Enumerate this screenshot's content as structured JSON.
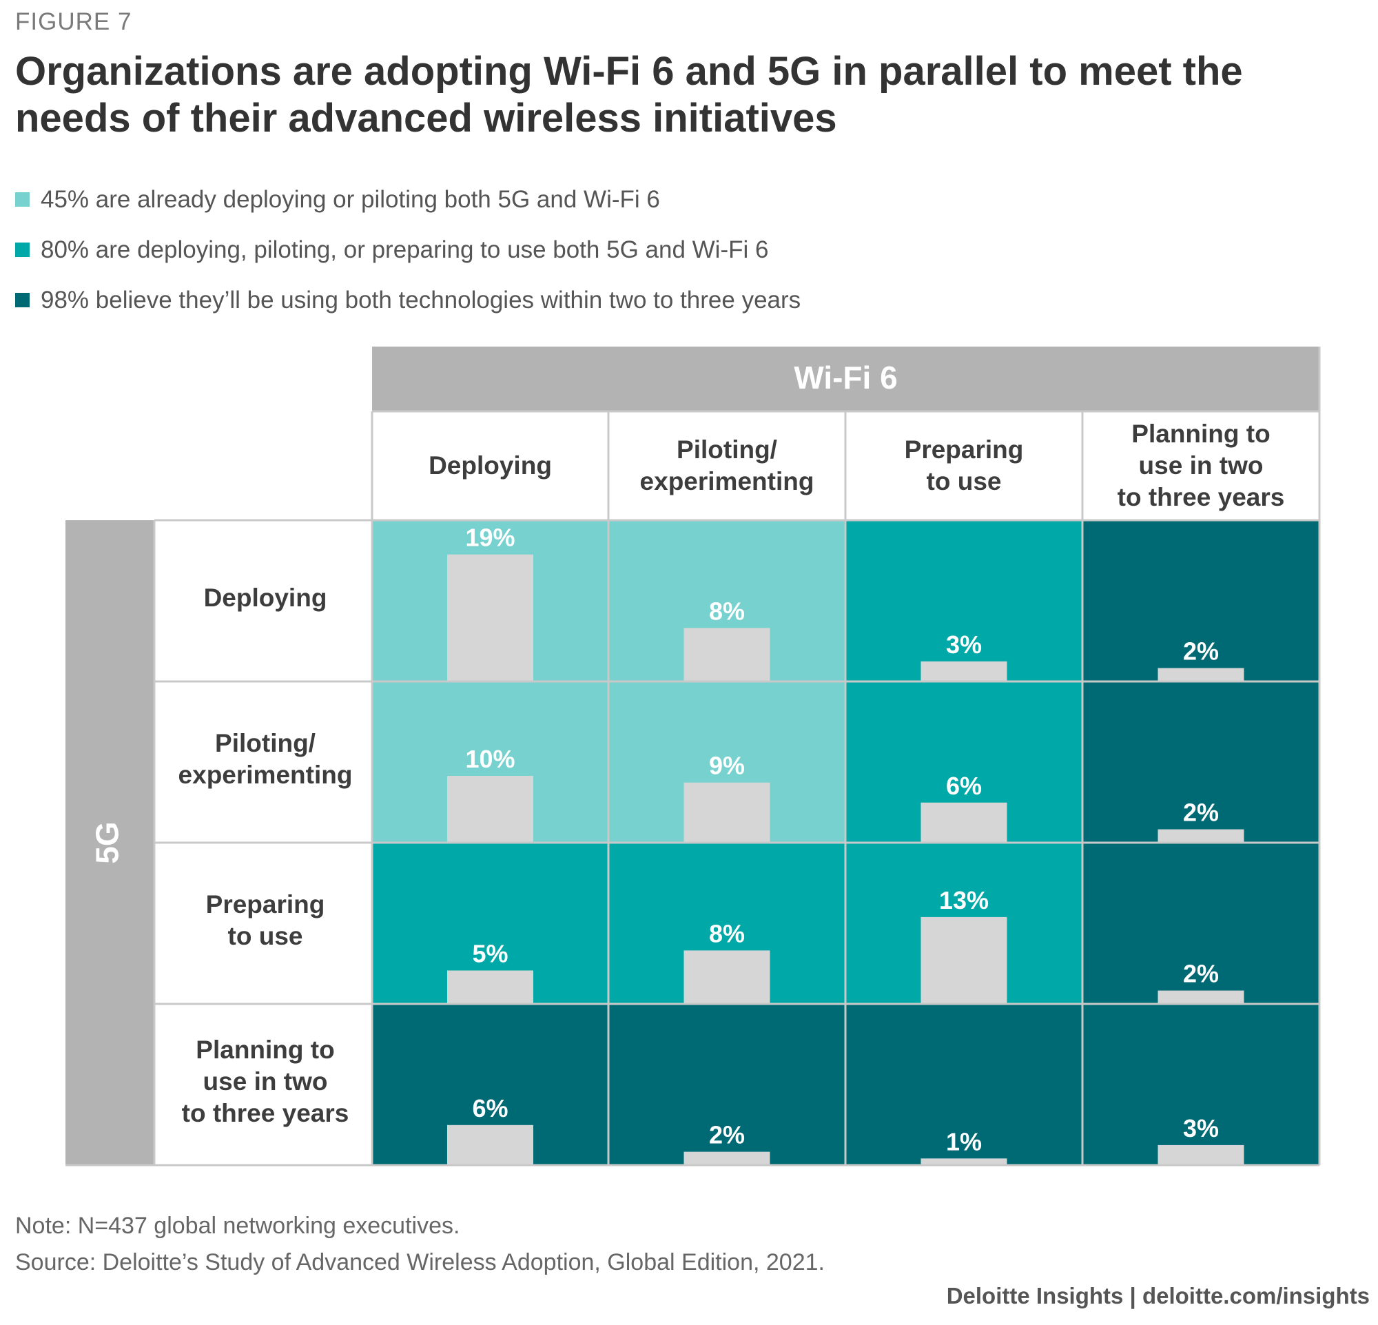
{
  "figure_label": "FIGURE 7",
  "title": "Organizations are adopting Wi-Fi 6 and 5G in parallel to meet the needs of their advanced wireless initiatives",
  "legend": [
    {
      "text": "45% are already deploying or piloting both 5G and Wi-Fi 6",
      "color": "#76d1cf"
    },
    {
      "text": "80% are deploying, piloting, or preparing to use both 5G and Wi-Fi 6",
      "color": "#00a9a7"
    },
    {
      "text": "98% believe they’ll be using both technologies within two to three years",
      "color": "#006a74"
    }
  ],
  "note": "Note: N=437 global networking executives.",
  "source": "Source: Deloitte’s Study of Advanced Wireless Adoption, Global Edition, 2021.",
  "brand": "Deloitte Insights | deloitte.com/insights",
  "colors": {
    "header_gray": "#b3b3b4",
    "bar": "#d6d6d6",
    "tier1": "#76d1cf",
    "tier2": "#00a9a7",
    "tier3": "#006a74"
  },
  "chart_data": {
    "type": "heatmap",
    "column_axis": "Wi-Fi 6",
    "row_axis": "5G",
    "columns": [
      [
        "Deploying"
      ],
      [
        "Piloting/",
        "experimenting"
      ],
      [
        "Preparing",
        "to use"
      ],
      [
        "Planning to",
        "use in two",
        "to three years"
      ]
    ],
    "rows": [
      [
        "Deploying"
      ],
      [
        "Piloting/",
        "experimenting"
      ],
      [
        "Preparing",
        "to use"
      ],
      [
        "Planning to",
        "use in two",
        "to three years"
      ]
    ],
    "values": [
      [
        19,
        8,
        3,
        2
      ],
      [
        10,
        9,
        6,
        2
      ],
      [
        5,
        8,
        13,
        2
      ],
      [
        6,
        2,
        1,
        3
      ]
    ],
    "tiers": [
      [
        1,
        1,
        2,
        3
      ],
      [
        1,
        1,
        2,
        3
      ],
      [
        2,
        2,
        2,
        3
      ],
      [
        3,
        3,
        3,
        3
      ]
    ],
    "unit": "%"
  }
}
